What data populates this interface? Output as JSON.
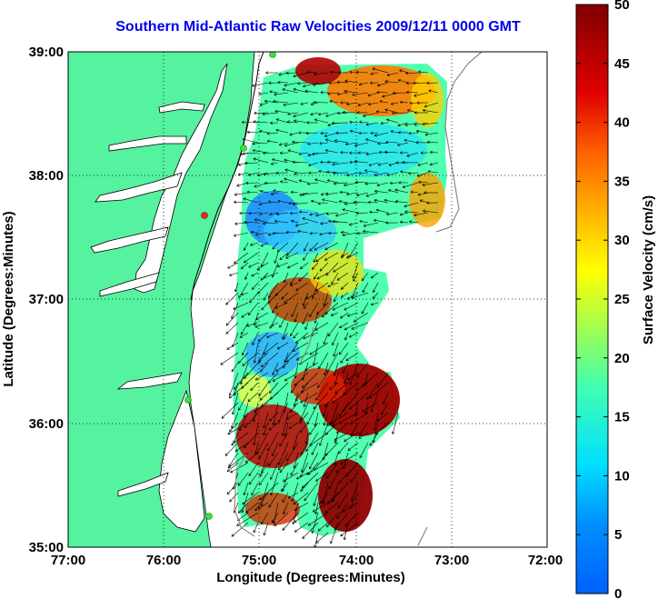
{
  "title": "Southern Mid-Atlantic Raw Velocities 2009/12/11 0000 GMT",
  "axes": {
    "xlabel": "Longitude (Degrees:Minutes)",
    "ylabel": "Latitude (Degrees:Minutes)",
    "x_ticks": [
      "77:00",
      "76:00",
      "75:00",
      "74:00",
      "73:00",
      "72:00"
    ],
    "y_ticks": [
      "39:00",
      "38:00",
      "37:00",
      "36:00",
      "35:00"
    ],
    "xlim": [
      -77,
      -72
    ],
    "ylim": [
      35,
      39
    ],
    "grid": "dotted"
  },
  "colorbar": {
    "label": "Surface Velocity (cm/s)",
    "ticks": [
      "0",
      "5",
      "10",
      "15",
      "20",
      "25",
      "30",
      "35",
      "40",
      "45",
      "50"
    ],
    "range": [
      0,
      50
    ],
    "colormap": "jet"
  },
  "colors": {
    "land": "#55f2a0",
    "water": "#ffffff",
    "title": "#0000ee",
    "coast": "#000000"
  }
}
